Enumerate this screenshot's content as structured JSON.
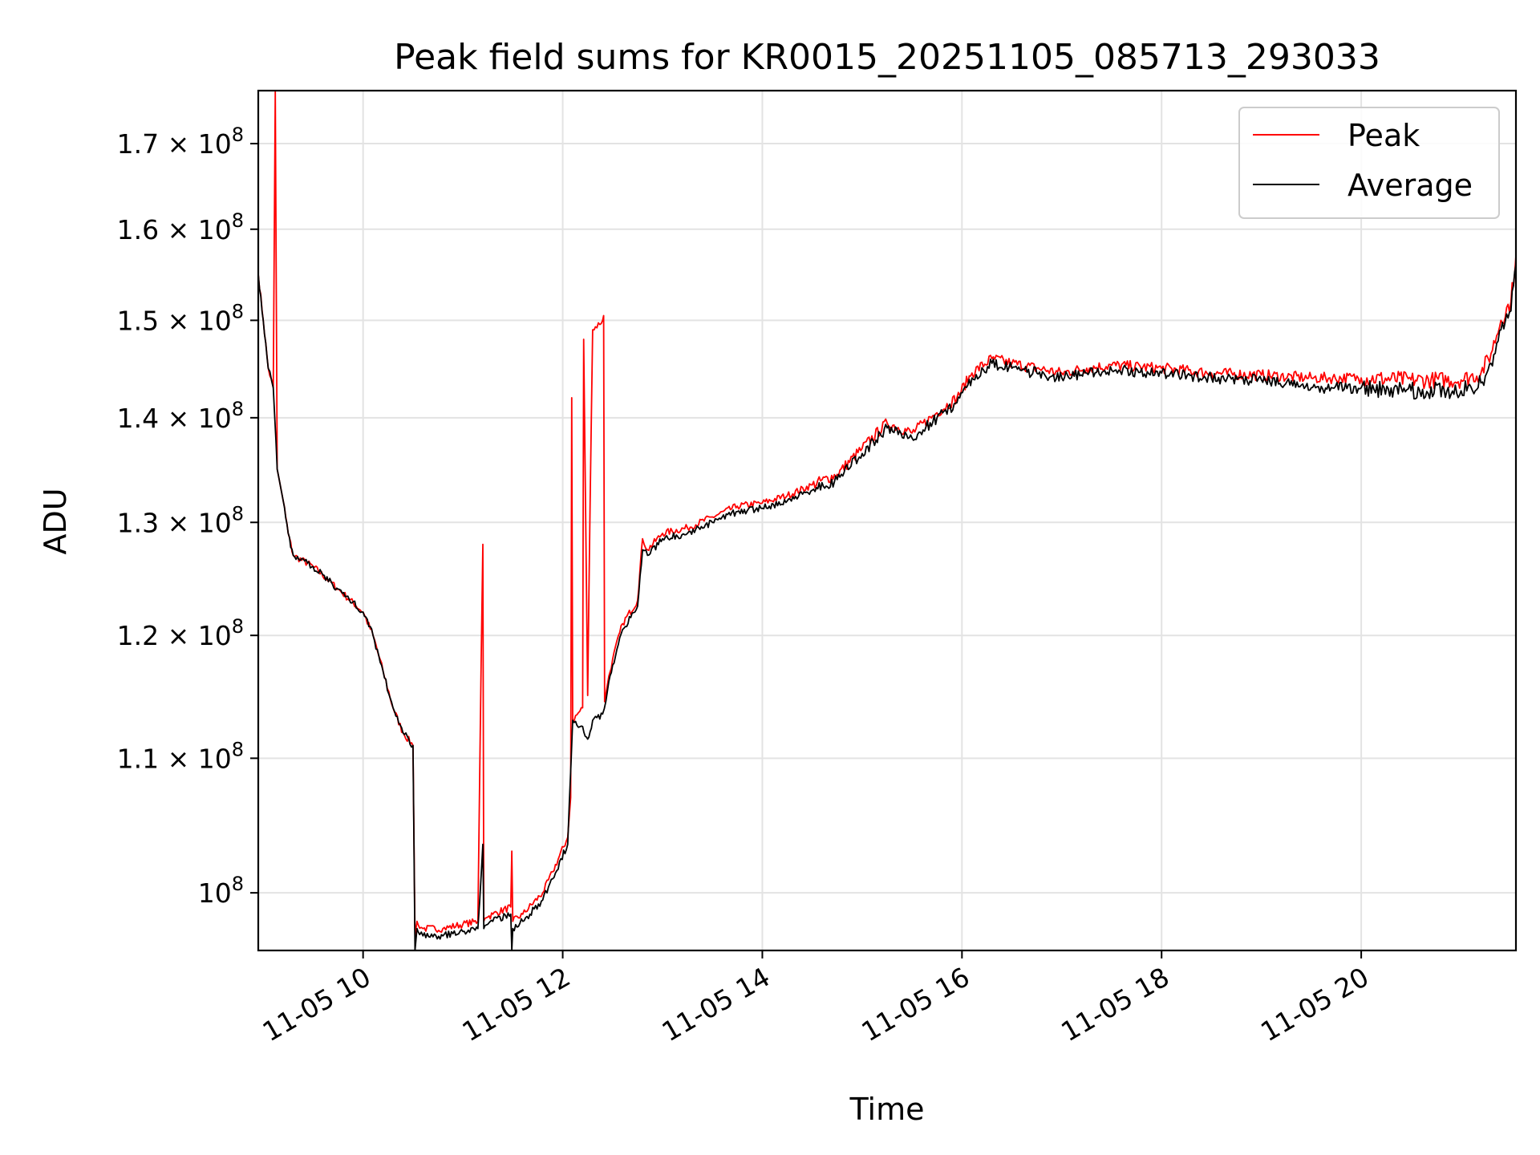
{
  "chart_data": {
    "type": "line",
    "title": "Peak field sums for KR0015_20251105_085713_293033",
    "xlabel": "Time",
    "ylabel": "ADU",
    "yscale": "log",
    "grid": true,
    "legend_position": "top-right",
    "x_unit": "hours since 11-05 00:00",
    "xlim": [
      8.95,
      21.55
    ],
    "ylim": [
      96000000,
      176500000
    ],
    "x_ticks": [
      {
        "value": 10,
        "label": "11-05 10"
      },
      {
        "value": 12,
        "label": "11-05 12"
      },
      {
        "value": 14,
        "label": "11-05 14"
      },
      {
        "value": 16,
        "label": "11-05 16"
      },
      {
        "value": 18,
        "label": "11-05 18"
      },
      {
        "value": 20,
        "label": "11-05 20"
      }
    ],
    "y_ticks": [
      {
        "value": 100000000,
        "mantissa": "",
        "label": "10",
        "exp": "8"
      },
      {
        "value": 110000000,
        "mantissa": "1.1",
        "label": "10",
        "exp": "8"
      },
      {
        "value": 120000000,
        "mantissa": "1.2",
        "label": "10",
        "exp": "8"
      },
      {
        "value": 130000000,
        "mantissa": "1.3",
        "label": "10",
        "exp": "8"
      },
      {
        "value": 140000000,
        "mantissa": "1.4",
        "label": "10",
        "exp": "8"
      },
      {
        "value": 150000000,
        "mantissa": "1.5",
        "label": "10",
        "exp": "8"
      },
      {
        "value": 160000000,
        "mantissa": "1.6",
        "label": "10",
        "exp": "8"
      },
      {
        "value": 170000000,
        "mantissa": "1.7",
        "label": "10",
        "exp": "8"
      }
    ],
    "series": [
      {
        "name": "Peak",
        "color": "#ff0000",
        "x": [
          8.95,
          9.0,
          9.05,
          9.1,
          9.12,
          9.14,
          9.16,
          9.2,
          9.25,
          9.3,
          9.5,
          9.75,
          10.0,
          10.1,
          10.2,
          10.3,
          10.4,
          10.5,
          10.52,
          10.54,
          10.55,
          10.6,
          10.8,
          11.0,
          11.15,
          11.2,
          11.21,
          11.22,
          11.25,
          11.3,
          11.48,
          11.49,
          11.5,
          11.6,
          11.8,
          11.9,
          12.05,
          12.08,
          12.09,
          12.1,
          12.2,
          12.21,
          12.25,
          12.3,
          12.4,
          12.41,
          12.42,
          12.45,
          12.5,
          12.6,
          12.75,
          12.8,
          12.85,
          13.0,
          13.25,
          13.5,
          13.75,
          14.0,
          14.25,
          14.5,
          14.75,
          15.0,
          15.25,
          15.5,
          15.75,
          15.95,
          16.1,
          16.3,
          16.5,
          16.75,
          17.0,
          17.25,
          17.5,
          18.0,
          18.5,
          19.0,
          19.5,
          20.0,
          20.5,
          21.0,
          21.2,
          21.3,
          21.4,
          21.5,
          21.55
        ],
        "y": [
          155000000,
          150000000,
          145000000,
          143000000,
          176500000,
          135000000,
          134000000,
          132000000,
          129000000,
          127000000,
          126000000,
          124000000,
          122000000,
          120000000,
          117000000,
          114000000,
          112000000,
          111000000,
          97000000,
          98000000,
          97800000,
          97500000,
          97500000,
          97800000,
          98000000,
          128000000,
          98000000,
          98200000,
          98300000,
          98500000,
          99000000,
          103000000,
          98000000,
          98500000,
          100000000,
          101500000,
          104000000,
          107000000,
          142000000,
          113000000,
          114000000,
          148000000,
          115000000,
          149000000,
          150000000,
          150500000,
          114500000,
          116000000,
          118000000,
          121000000,
          123000000,
          128500000,
          127500000,
          129000000,
          129500000,
          130500000,
          131500000,
          131800000,
          132500000,
          133500000,
          134500000,
          137000000,
          139500000,
          138500000,
          140500000,
          142000000,
          144500000,
          146000000,
          145500000,
          145000000,
          144500000,
          145000000,
          145300000,
          145000000,
          144500000,
          144300000,
          144000000,
          144000000,
          143800000,
          143800000,
          144500000,
          146500000,
          150000000,
          152000000,
          157000000
        ]
      },
      {
        "name": "Average",
        "color": "#000000",
        "x": [
          8.95,
          9.0,
          9.05,
          9.1,
          9.14,
          9.16,
          9.2,
          9.25,
          9.3,
          9.5,
          9.75,
          10.0,
          10.1,
          10.2,
          10.3,
          10.4,
          10.5,
          10.52,
          10.54,
          10.55,
          10.6,
          10.8,
          11.0,
          11.15,
          11.2,
          11.21,
          11.22,
          11.25,
          11.3,
          11.48,
          11.49,
          11.5,
          11.6,
          11.8,
          11.9,
          12.05,
          12.1,
          12.2,
          12.25,
          12.3,
          12.4,
          12.45,
          12.5,
          12.6,
          12.75,
          12.8,
          12.85,
          13.0,
          13.25,
          13.5,
          13.75,
          14.0,
          14.25,
          14.5,
          14.75,
          15.0,
          15.25,
          15.5,
          15.75,
          15.95,
          16.1,
          16.3,
          16.5,
          16.75,
          17.0,
          17.25,
          17.5,
          18.0,
          18.5,
          19.0,
          19.5,
          20.0,
          20.5,
          21.0,
          21.2,
          21.3,
          21.4,
          21.5,
          21.55
        ],
        "y": [
          155000000,
          150000000,
          145000000,
          143000000,
          135000000,
          134000000,
          132000000,
          129000000,
          127000000,
          126000000,
          124000000,
          122000000,
          120000000,
          117000000,
          114000000,
          112000000,
          111000000,
          96000000,
          97500000,
          97300000,
          97000000,
          97000000,
          97300000,
          97500000,
          103500000,
          97500000,
          97700000,
          97800000,
          98000000,
          98500000,
          96000000,
          97500000,
          98000000,
          99500000,
          101000000,
          103500000,
          113000000,
          112500000,
          111500000,
          113000000,
          113500000,
          115500000,
          117500000,
          120500000,
          122500000,
          127500000,
          127000000,
          128500000,
          129000000,
          130000000,
          131000000,
          131300000,
          132000000,
          133000000,
          134000000,
          136500000,
          139000000,
          138000000,
          140000000,
          141500000,
          144000000,
          145500000,
          145000000,
          144500000,
          144000000,
          144500000,
          144800000,
          144500000,
          144000000,
          143800000,
          143000000,
          143000000,
          142700000,
          142700000,
          143500000,
          145500000,
          149000000,
          151000000,
          156000000
        ]
      }
    ]
  }
}
